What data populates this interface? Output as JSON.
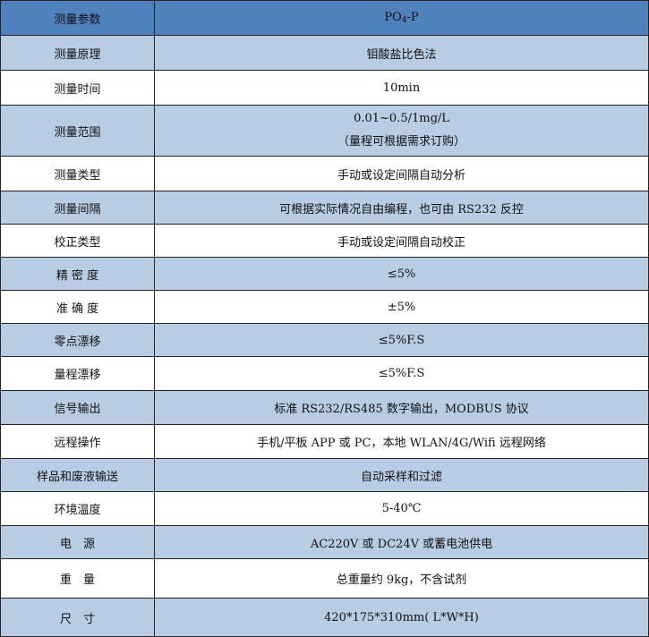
{
  "colors": {
    "header": "#4f81bd",
    "band": "#b8cce4",
    "white": "#ffffff"
  },
  "header": {
    "key": "测量参数",
    "value_main": "PO",
    "value_sub": "4",
    "value_tail": "-P"
  },
  "rows": [
    {
      "key": "测量原理",
      "value": "钼酸盐比色法"
    },
    {
      "key": "测量时间",
      "value": "10min"
    },
    {
      "key": "测量范围",
      "value": "0.01~0.5/1mg/L",
      "value2": "（量程可根据需求订购）"
    },
    {
      "key": "测量类型",
      "value": "手动或设定间隔自动分析"
    },
    {
      "key": "测量间隔",
      "value": "可根据实际情况自由编程，也可由 RS232 反控"
    },
    {
      "key": "校正类型",
      "value": "手动或设定间隔自动校正"
    },
    {
      "key": "精 密 度",
      "value": "≤5%"
    },
    {
      "key": "准 确 度",
      "value": "±5%"
    },
    {
      "key": "零点漂移",
      "value": "≤5%F.S"
    },
    {
      "key": "量程漂移",
      "value": "≤5%F.S"
    },
    {
      "key": "信号输出",
      "value": "标准 RS232/RS485 数字输出，MODBUS 协议"
    },
    {
      "key": "远程操作",
      "value": "手机/平板 APP 或 PC，本地 WLAN/4G/Wifi 远程网络"
    },
    {
      "key": "样品和废液输送",
      "value": "自动采样和过滤"
    },
    {
      "key": "环境温度",
      "value": "5-40℃"
    },
    {
      "key": "电　源",
      "value": "AC220V 或 DC24V 或蓄电池供电"
    },
    {
      "key": "重　量",
      "value": "总重量约 9kg，不含试剂"
    },
    {
      "key": "尺　寸",
      "value": "420*175*310mm( L*W*H)"
    }
  ]
}
